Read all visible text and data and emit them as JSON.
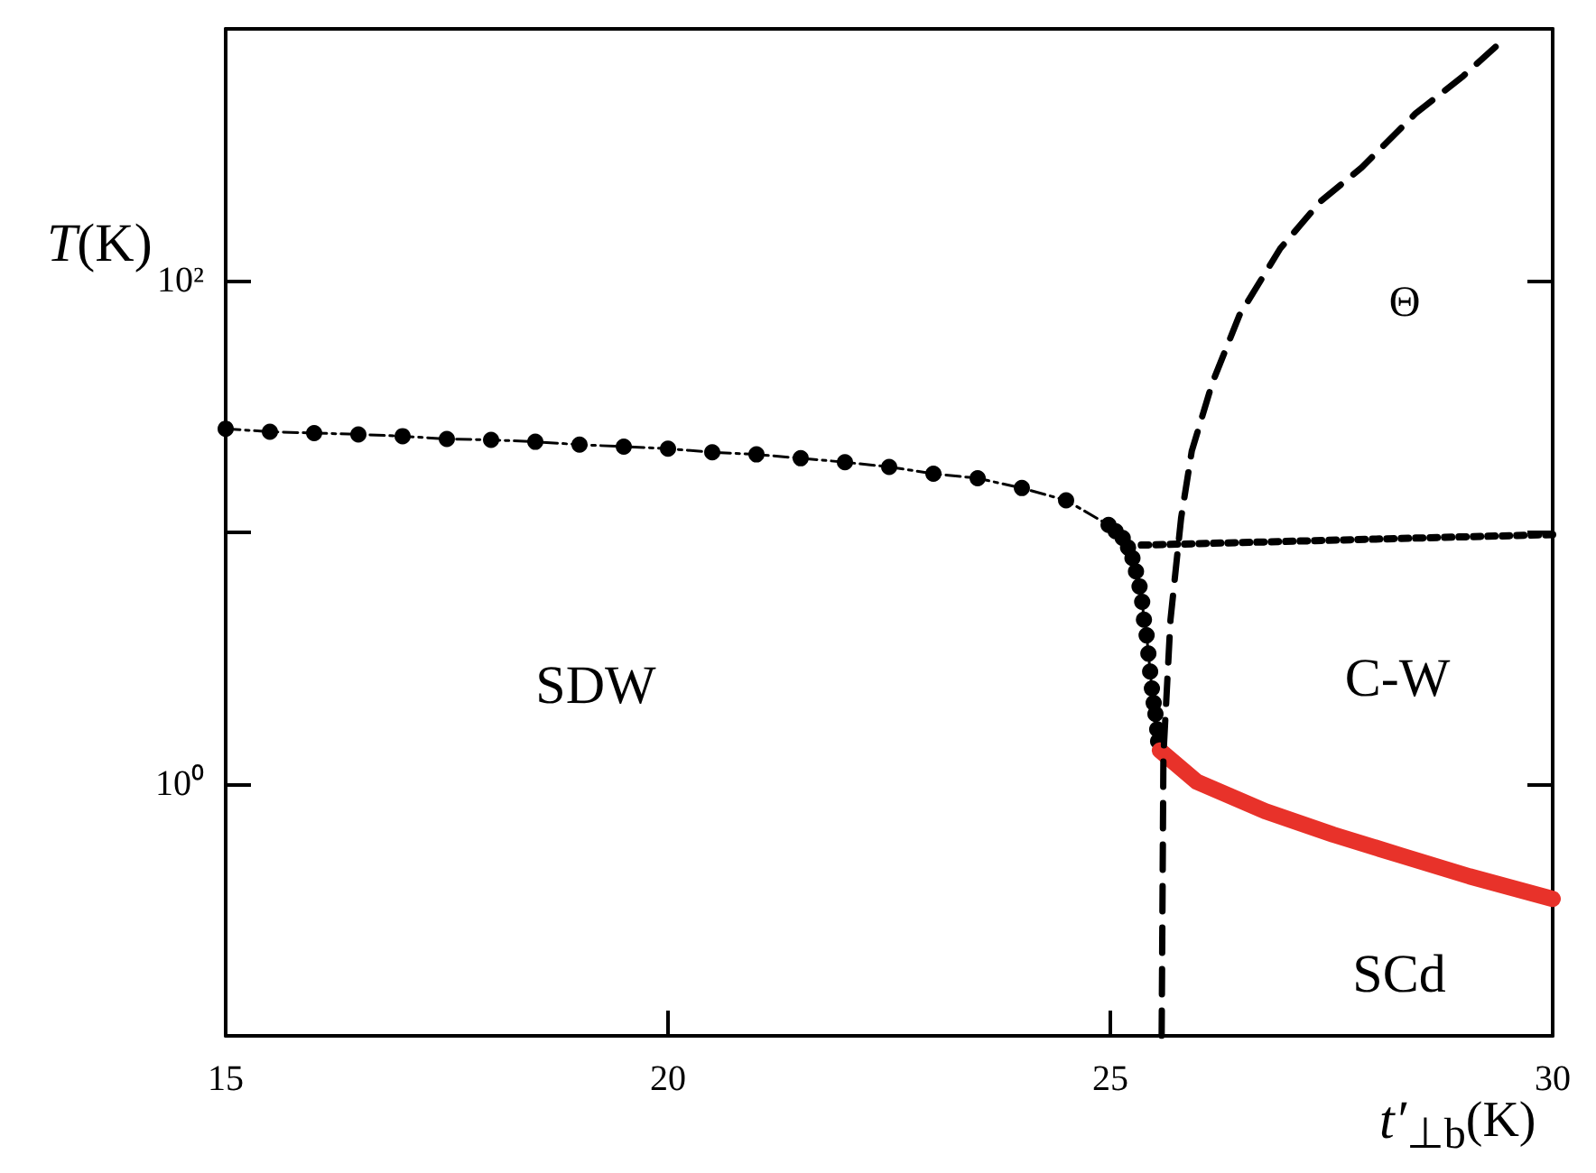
{
  "chart_data": {
    "type": "line",
    "xlabel": "t′$_{⊥b}$(K)",
    "ylabel": "T(K)",
    "log": "y",
    "xlim": [
      15,
      30
    ],
    "xticks": [
      15,
      20,
      25,
      30
    ],
    "ylim": [
      0.1,
      1000
    ],
    "yticks": [
      {
        "value": 1,
        "label": "10⁰"
      },
      {
        "value": 10,
        "label": null
      },
      {
        "value": 100,
        "label": "10²"
      },
      {
        "value": 1000,
        "label": null
      }
    ],
    "grid": false,
    "series": [
      {
        "color": "#000000",
        "marker": "circle",
        "line_style": "dashed",
        "x": [
          15,
          15.5,
          16,
          16.5,
          17,
          17.5,
          18,
          18.5,
          19,
          19.5,
          20,
          20.5,
          21,
          21.5,
          22,
          22.5,
          23,
          23.5,
          24,
          24.5,
          24.98,
          25.06,
          25.14,
          25.2,
          25.25,
          25.29,
          25.33,
          25.36,
          25.38,
          25.41,
          25.43,
          25.45,
          25.47,
          25.49,
          25.51,
          25.53,
          25.54
        ],
        "values": [
          25.8,
          25.1,
          24.8,
          24.5,
          24.1,
          23.5,
          23.3,
          22.9,
          22.3,
          21.9,
          21.5,
          20.8,
          20.4,
          19.7,
          19.0,
          18.2,
          17.1,
          16.4,
          15.0,
          13.4,
          10.7,
          10.1,
          9.5,
          8.7,
          7.9,
          7.0,
          6.1,
          5.3,
          4.5,
          3.9,
          3.3,
          2.8,
          2.4,
          2.1,
          1.9,
          1.65,
          1.48
        ]
      },
      {
        "color": "#e8322a",
        "marker": "none",
        "line_style": "solid",
        "x": [
          25.56,
          25.98,
          26.75,
          27.52,
          28.29,
          29.06,
          30
        ],
        "values": [
          1.36,
          1.02,
          0.78,
          0.63,
          0.52,
          0.43,
          0.35
        ]
      },
      {
        "color": "#000000",
        "marker": "none",
        "line_style": "dotted",
        "x": [
          25.35,
          30
        ],
        "values": [
          8.9,
          9.8
        ]
      },
      {
        "color": "#000000",
        "marker": "none",
        "line_style": "dashed",
        "x": [
          25.58,
          25.6,
          25.68,
          25.8,
          25.92,
          26.15,
          26.46,
          26.92,
          27.38,
          27.84,
          28.45,
          28.99,
          29.45
        ],
        "values": [
          0.1,
          1.3,
          4.5,
          11.4,
          21,
          39,
          73,
          134,
          207,
          281,
          461,
          650,
          910
        ]
      }
    ],
    "annotations": [
      "SDW",
      "C-W",
      "SCd",
      "Θ"
    ]
  }
}
